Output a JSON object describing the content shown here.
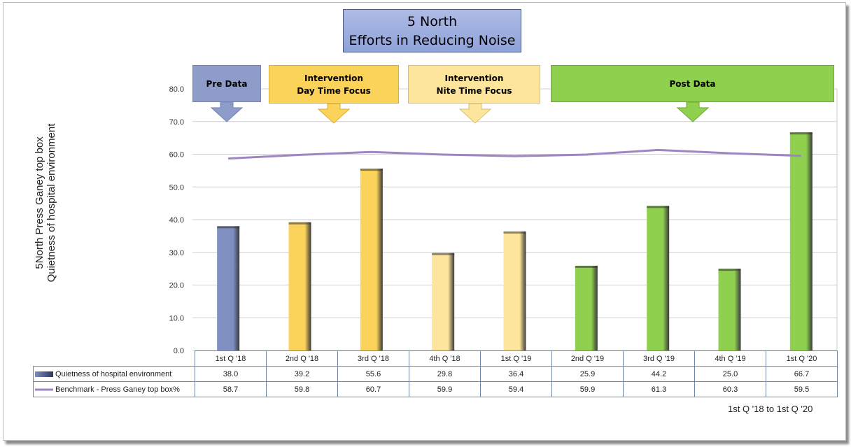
{
  "title": {
    "line1": "5 North",
    "line2": "Efforts in Reducing Noise"
  },
  "phases": [
    {
      "line1": "Pre Data",
      "line2": "",
      "color": "#8d9cc9",
      "border": "#7383b5"
    },
    {
      "line1": "Intervention",
      "line2": "Day Time Focus",
      "color": "#fcd35a",
      "border": "#d9ac36"
    },
    {
      "line1": "Intervention",
      "line2": "Nite Time Focus",
      "color": "#fde59b",
      "border": "#d9bf72"
    },
    {
      "line1": "Post Data",
      "line2": "",
      "color": "#8fd04e",
      "border": "#6aa733"
    }
  ],
  "footer_range": "1st Q '18 to  1st Q '20",
  "chart_data": {
    "type": "bar",
    "ylabel": "5North Press Ganey top box\nQuietness of hospital environment",
    "ylim": [
      0,
      80
    ],
    "yticks": [
      "0.0",
      "10.0",
      "20.0",
      "30.0",
      "40.0",
      "50.0",
      "60.0",
      "70.0",
      "80.0"
    ],
    "grid": true,
    "categories": [
      "1st Q '18",
      "2nd Q '18",
      "3rd Q '18",
      "4th Q '18",
      "1st Q '19",
      "2nd Q '19",
      "3rd Q '19",
      "4th Q '19",
      "1st Q '20"
    ],
    "series": [
      {
        "name": "Quietness of hospital environment",
        "type": "bar",
        "values": [
          38.0,
          39.2,
          55.6,
          29.8,
          36.4,
          25.9,
          44.2,
          25.0,
          66.7
        ],
        "labels": [
          "38.0",
          "39.2",
          "55.6",
          "29.8",
          "36.4",
          "25.9",
          "44.2",
          "25.0",
          "66.7"
        ],
        "colors": [
          "#7f8fc2",
          "#fcd35a",
          "#fcd35a",
          "#fde59b",
          "#fde59b",
          "#8fd04e",
          "#8fd04e",
          "#8fd04e",
          "#8fd04e"
        ]
      },
      {
        "name": "Benchmark - Press Ganey top box%",
        "type": "line",
        "values": [
          58.7,
          59.8,
          60.7,
          59.9,
          59.4,
          59.9,
          61.3,
          60.3,
          59.5
        ],
        "labels": [
          "58.7",
          "59.8",
          "60.7",
          "59.9",
          "59.4",
          "59.9",
          "61.3",
          "60.3",
          "59.5"
        ],
        "color": "#9e86c2"
      }
    ]
  }
}
